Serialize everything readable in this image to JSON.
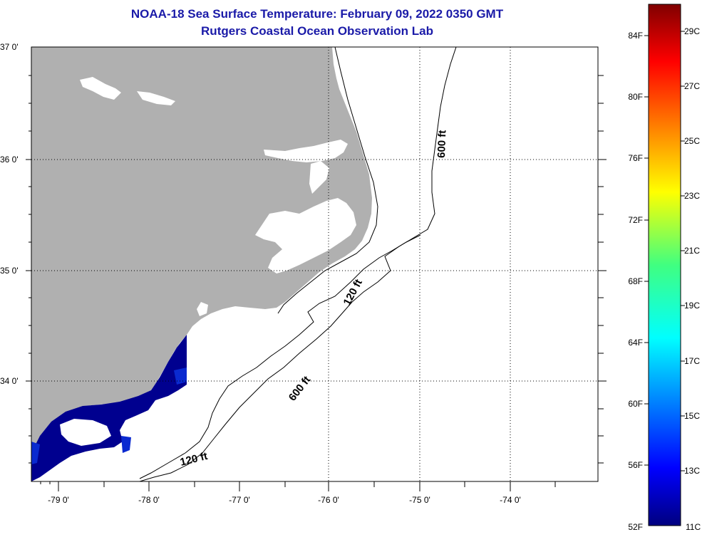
{
  "title": {
    "line1": "NOAA-18 Sea Surface Temperature:  February 09, 2022 0350 GMT",
    "line2": "Rutgers Coastal Ocean Observation Lab"
  },
  "map": {
    "lat_labels": [
      "37 0'",
      "36 0'",
      "35 0'",
      "34 0'"
    ],
    "lon_labels": [
      "-79 0'",
      "-78 0'",
      "-77 0'",
      "-76 0'",
      "-75 0'",
      "-74 0'"
    ],
    "contour_labels": {
      "c600_north": "600 ft",
      "c120_mid": "120 ft",
      "c600_south": "600 ft",
      "c120_south": "120 ft"
    },
    "colors": {
      "land": "#b0b0b0",
      "sst_cold": "#00008f",
      "sst_blue": "#0a1ea0"
    }
  },
  "colorbar": {
    "fahrenheit_labels": [
      "84F",
      "80F",
      "76F",
      "72F",
      "68F",
      "64F",
      "60F",
      "56F",
      "52F"
    ],
    "celsius_labels": [
      "29C",
      "27C",
      "25C",
      "23C",
      "21C",
      "19C",
      "17C",
      "15C",
      "13C",
      "11C"
    ],
    "colormap": "jet"
  }
}
